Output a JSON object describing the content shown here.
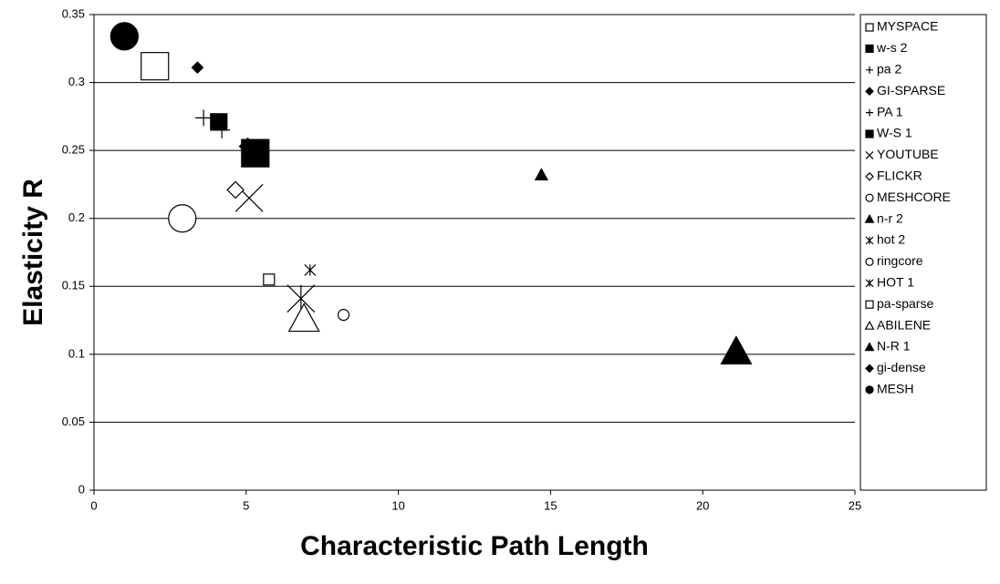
{
  "chart_data": {
    "type": "scatter",
    "x_label": "Characteristic Path Length",
    "y_label": "Elasticity R",
    "xlim": [
      0,
      25
    ],
    "xticks": [
      0,
      5,
      10,
      15,
      20,
      25
    ],
    "ylim": [
      0,
      0.35
    ],
    "yticks": [
      0,
      0.05,
      0.1,
      0.15,
      0.2,
      0.25,
      0.3,
      0.35
    ],
    "grid": true,
    "legend": "right",
    "series": [
      {
        "name": "MYSPACE",
        "color": "#000000",
        "marker": "square",
        "filled": false,
        "size": "large",
        "x": [
          2.0
        ],
        "values": [
          0.312
        ]
      },
      {
        "name": "w-s 2",
        "color": "#000000",
        "marker": "square",
        "filled": true,
        "size": "medium",
        "x": [
          4.1
        ],
        "values": [
          0.271
        ]
      },
      {
        "name": "pa 2",
        "color": "#000000",
        "marker": "plus",
        "filled": false,
        "size": "medium",
        "x": [
          3.6
        ],
        "values": [
          0.274
        ]
      },
      {
        "name": "GI-SPARSE",
        "color": "#000000",
        "marker": "diamond",
        "filled": true,
        "size": "small",
        "x": [
          3.4
        ],
        "values": [
          0.311
        ]
      },
      {
        "name": "PA 1",
        "color": "#000000",
        "marker": "plus",
        "filled": false,
        "size": "medium",
        "x": [
          4.2
        ],
        "values": [
          0.265
        ]
      },
      {
        "name": "W-S 1",
        "color": "#000000",
        "marker": "square",
        "filled": true,
        "size": "large",
        "x": [
          5.3
        ],
        "values": [
          0.248
        ]
      },
      {
        "name": "YOUTUBE",
        "color": "#000000",
        "marker": "x",
        "filled": false,
        "size": "large",
        "x": [
          5.1
        ],
        "values": [
          0.215
        ]
      },
      {
        "name": "FLICKR",
        "color": "#000000",
        "marker": "diamond",
        "filled": false,
        "size": "medium",
        "x": [
          4.65
        ],
        "values": [
          0.221
        ]
      },
      {
        "name": "MESHCORE",
        "color": "#000000",
        "marker": "circle",
        "filled": false,
        "size": "large",
        "x": [
          2.9
        ],
        "values": [
          0.2
        ]
      },
      {
        "name": "n-r 2",
        "color": "#000000",
        "marker": "triangle",
        "filled": true,
        "size": "small",
        "x": [
          14.7
        ],
        "values": [
          0.232
        ]
      },
      {
        "name": "hot 2",
        "color": "#000000",
        "marker": "asterisk",
        "filled": false,
        "size": "small",
        "x": [
          7.1
        ],
        "values": [
          0.162
        ]
      },
      {
        "name": "ringcore",
        "color": "#000000",
        "marker": "circle",
        "filled": false,
        "size": "small",
        "x": [
          8.2
        ],
        "values": [
          0.129
        ]
      },
      {
        "name": "HOT 1",
        "color": "#000000",
        "marker": "asterisk",
        "filled": false,
        "size": "large",
        "x": [
          6.8
        ],
        "values": [
          0.141
        ]
      },
      {
        "name": "pa-sparse",
        "color": "#000000",
        "marker": "square",
        "filled": false,
        "size": "small",
        "x": [
          5.75
        ],
        "values": [
          0.155
        ]
      },
      {
        "name": "ABILENE",
        "color": "#000000",
        "marker": "triangle",
        "filled": false,
        "size": "large",
        "x": [
          6.9
        ],
        "values": [
          0.126
        ]
      },
      {
        "name": "N-R 1",
        "color": "#000000",
        "marker": "triangle",
        "filled": true,
        "size": "large",
        "x": [
          21.1
        ],
        "values": [
          0.102
        ]
      },
      {
        "name": "gi-dense",
        "color": "#000000",
        "marker": "diamond",
        "filled": true,
        "size": "medium",
        "x": [
          5.05
        ],
        "values": [
          0.253
        ]
      },
      {
        "name": "MESH",
        "color": "#000000",
        "marker": "circle",
        "filled": true,
        "size": "large",
        "x": [
          1.0
        ],
        "values": [
          0.334
        ]
      }
    ]
  }
}
